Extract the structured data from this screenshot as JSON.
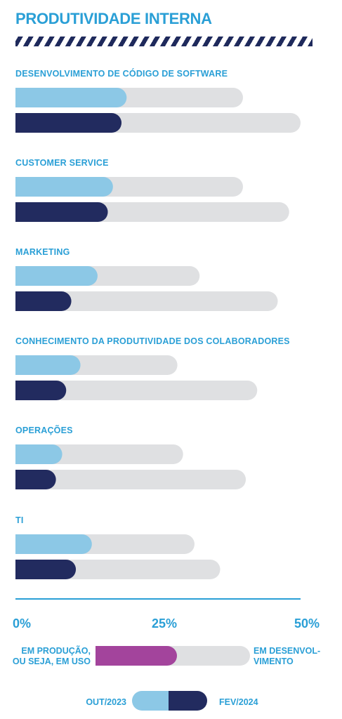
{
  "title": "PRODUTIVIDADE INTERNA",
  "chart_data": {
    "type": "bar",
    "orientation": "horizontal",
    "stacked_segments": true,
    "title": "PRODUTIVIDADE INTERNA",
    "xlim": [
      0,
      50
    ],
    "x_ticks": [
      "0%",
      "25%",
      "50%"
    ],
    "categories": [
      "Desenvolvimento de código de software",
      "Customer Service",
      "Marketing",
      "Conhecimento da produtividade dos colaboradores",
      "Operações",
      "TI"
    ],
    "series": [
      {
        "name": "Out/2023",
        "color": "#8cc8e6",
        "em_producao": [
          19.5,
          17.1,
          14.4,
          11.4,
          8.2,
          13.4
        ],
        "em_desenvolvimento": [
          20.4,
          22.8,
          17.9,
          17.0,
          21.2,
          18.0
        ]
      },
      {
        "name": "Fev/2024",
        "color": "#222b5f",
        "em_producao": [
          18.6,
          16.2,
          9.8,
          8.9,
          7.1,
          10.6
        ],
        "em_desenvolvimento": [
          31.4,
          31.8,
          36.2,
          33.5,
          33.3,
          25.3
        ]
      }
    ],
    "remainder_color": "#dfe0e2",
    "grid": false
  },
  "legend": {
    "producao_label": "Em produção,\nou seja, em uso",
    "desenvolvimento_label": "Em desenvol-\nvimento",
    "producao_color": "#a3449c",
    "out_label": "Out/2023",
    "fev_label": "Fev/2024"
  }
}
